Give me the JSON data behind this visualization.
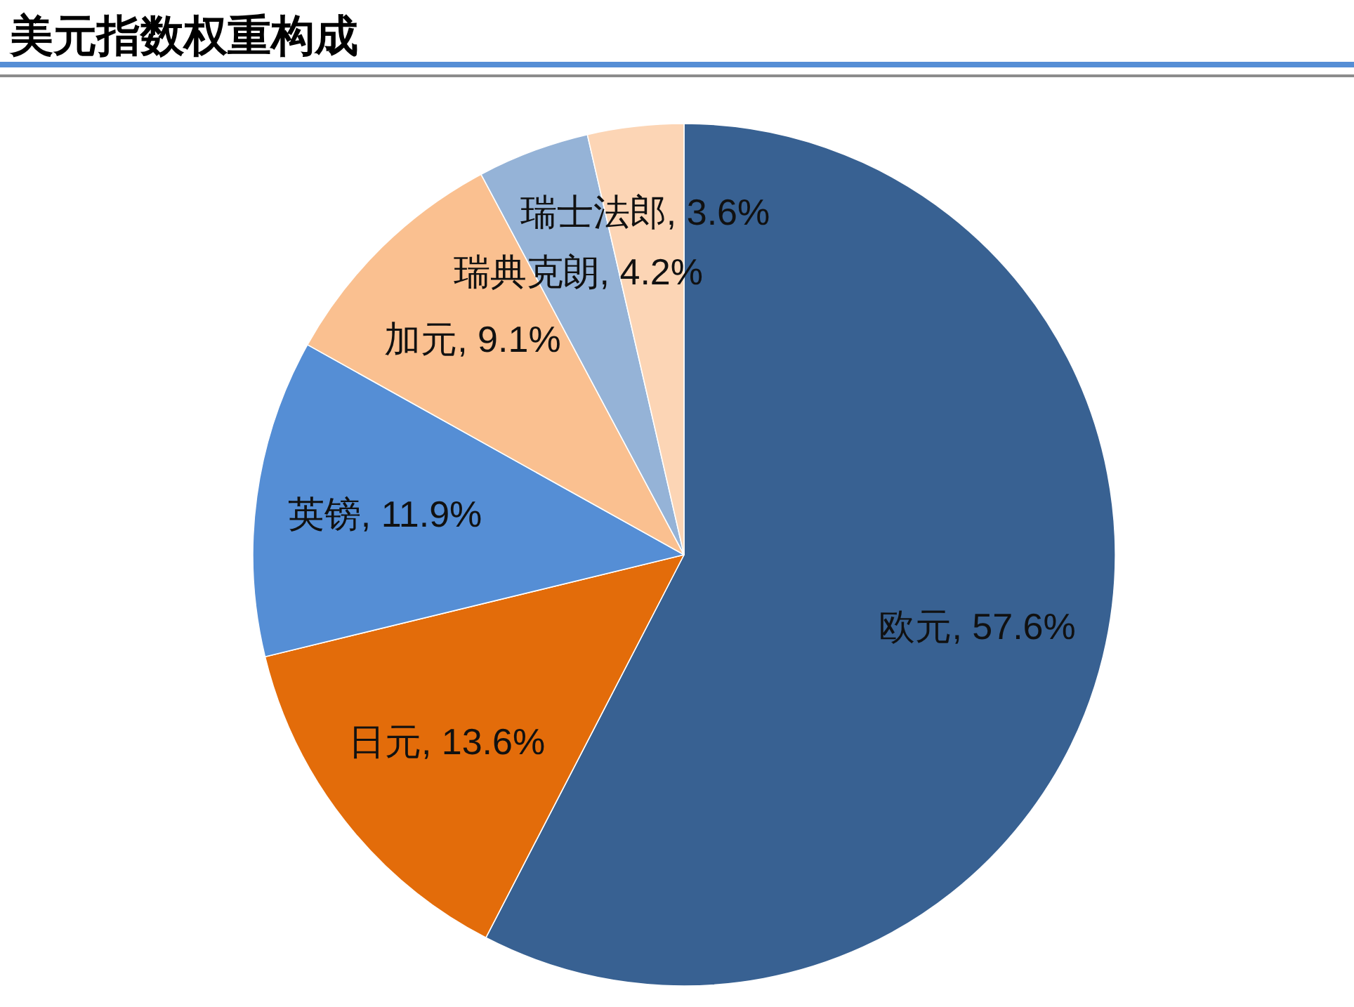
{
  "chart_data": {
    "type": "pie",
    "title": "美元指数权重构成",
    "categories": [
      "欧元",
      "日元",
      "英镑",
      "加元",
      "瑞典克朗",
      "瑞士法郎"
    ],
    "values": [
      57.6,
      13.6,
      11.9,
      9.1,
      4.2,
      3.6
    ],
    "colors": [
      "#386192",
      "#e36c0a",
      "#558ed5",
      "#fac090",
      "#95b3d7",
      "#fcd5b5"
    ],
    "value_labels": [
      "57.6%",
      "13.6%",
      "11.9%",
      "9.1%",
      "4.2%",
      "3.6%"
    ]
  }
}
